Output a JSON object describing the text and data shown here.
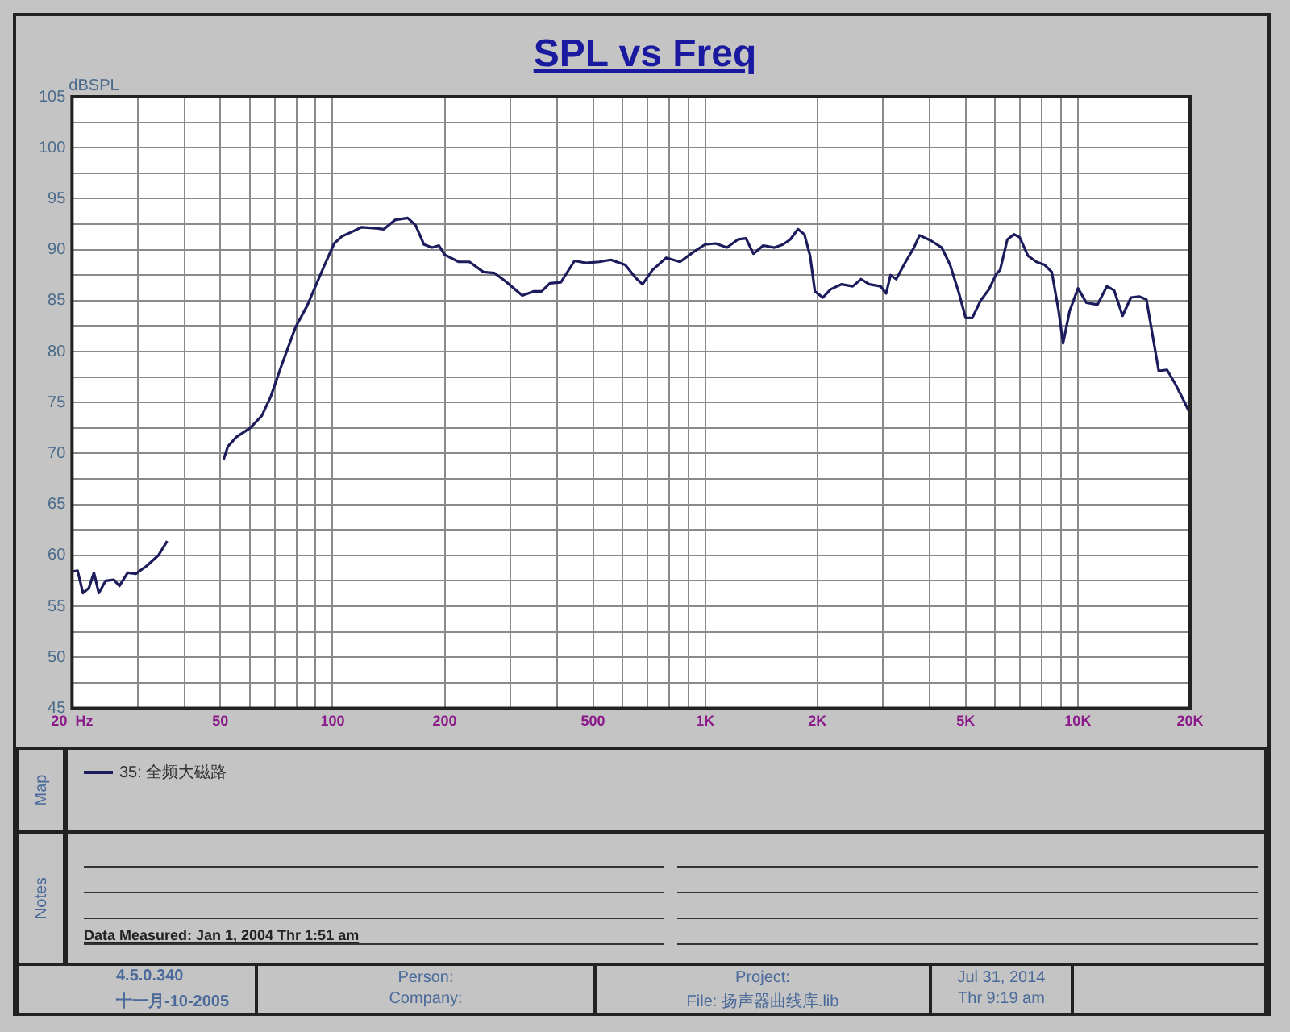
{
  "chart_data": {
    "type": "line",
    "title": "SPL vs Freq",
    "ylabel": "dBSPL",
    "x": [
      20,
      20.7,
      21.4,
      22.2,
      22.9,
      23.6,
      24.6,
      25.9,
      26.8,
      28.2,
      29.7,
      31.8,
      34.1,
      36,
      43,
      51,
      52.4,
      55.2,
      60.1,
      64.6,
      68.3,
      72.9,
      79.6,
      85.5,
      89.5,
      94.7,
      101,
      106,
      113.6,
      119.7,
      130.8,
      137.3,
      147,
      159,
      167,
      176,
      185,
      193,
      200,
      218,
      233,
      254,
      272,
      291,
      323,
      346,
      364,
      383,
      410,
      446,
      478,
      520,
      558,
      610,
      652,
      679,
      722,
      786,
      856,
      933,
      999,
      1067,
      1144,
      1225,
      1287,
      1347,
      1432,
      1535,
      1617,
      1692,
      1774,
      1846,
      1912,
      1970,
      2070,
      2170,
      2324,
      2489,
      2620,
      2758,
      2955,
      3059,
      3144,
      3255,
      3450,
      3632,
      3759,
      4027,
      4314,
      4542,
      4782,
      5000,
      5210,
      5486,
      5775,
      6040,
      6186,
      6470,
      6744,
      6980,
      7348,
      7737,
      8146,
      8514,
      8878,
      9125,
      9510,
      10010,
      10540,
      11290,
      11970,
      12516,
      13180,
      13880,
      14610,
      15275,
      16480,
      17350,
      18270,
      19230,
      20000
    ],
    "series": [
      {
        "name": "35: 全频大磁路",
        "color": "#1c1c5c",
        "values": [
          58.4,
          58.5,
          56.3,
          56.8,
          58.3,
          56.3,
          57.5,
          57.6,
          57,
          58.3,
          58.2,
          59,
          60,
          61.4,
          null,
          69.4,
          70.7,
          71.6,
          72.5,
          73.7,
          75.6,
          78.6,
          82.4,
          84.5,
          86.2,
          88.3,
          90.6,
          91.3,
          91.8,
          92.2,
          92.1,
          92,
          92.9,
          93.1,
          92.4,
          90.5,
          90.2,
          90.4,
          89.5,
          88.8,
          88.8,
          87.8,
          87.7,
          86.9,
          85.5,
          85.9,
          85.9,
          86.7,
          86.8,
          88.9,
          88.7,
          88.8,
          89,
          88.5,
          87.2,
          86.6,
          88,
          89.2,
          88.8,
          89.8,
          90.5,
          90.6,
          90.2,
          91,
          91.1,
          89.6,
          90.4,
          90.2,
          90.5,
          91,
          92,
          91.5,
          89.4,
          85.9,
          85.3,
          86.1,
          86.6,
          86.4,
          87.1,
          86.6,
          86.4,
          85.7,
          87.5,
          87.1,
          88.8,
          90.2,
          91.4,
          90.9,
          90.2,
          88.5,
          85.9,
          83.3,
          83.3,
          85,
          86.1,
          87.6,
          88,
          91,
          91.5,
          91.2,
          89.4,
          88.8,
          88.5,
          87.8,
          84,
          80.8,
          84,
          86.2,
          84.8,
          84.6,
          86.4,
          86,
          83.5,
          85.3,
          85.4,
          85.1,
          78.1,
          78.2,
          76.8,
          75.2,
          73.9
        ]
      }
    ],
    "xlim": [
      20,
      20000
    ],
    "ylim": [
      45,
      105
    ],
    "xticks": [
      {
        "value": 20,
        "label": "20  Hz"
      },
      {
        "value": 30,
        "label": null
      },
      {
        "value": 40,
        "label": null
      },
      50,
      {
        "value": 60,
        "label": null
      },
      {
        "value": 70,
        "label": null
      },
      {
        "value": 80,
        "label": null
      },
      {
        "value": 90,
        "label": null
      },
      100,
      200,
      {
        "value": 300,
        "label": null
      },
      {
        "value": 400,
        "label": null
      },
      500,
      {
        "value": 600,
        "label": null
      },
      {
        "value": 700,
        "label": null
      },
      {
        "value": 800,
        "label": null
      },
      {
        "value": 900,
        "label": null
      },
      {
        "value": 1000,
        "label": "1K"
      },
      {
        "value": 2000,
        "label": "2K"
      },
      {
        "value": 3000,
        "label": null
      },
      {
        "value": 4000,
        "label": null
      },
      {
        "value": 5000,
        "label": "5K"
      },
      {
        "value": 6000,
        "label": null
      },
      {
        "value": 7000,
        "label": null
      },
      {
        "value": 8000,
        "label": null
      },
      {
        "value": 9000,
        "label": null
      },
      {
        "value": 10000,
        "label": "10K"
      },
      {
        "value": 20000,
        "label": "20K"
      }
    ],
    "yticks": [
      45,
      {
        "value": 47.5,
        "label": null
      },
      50,
      {
        "value": 52.5,
        "label": null
      },
      55,
      {
        "value": 57.5,
        "label": null
      },
      60,
      {
        "value": 62.5,
        "label": null
      },
      65,
      {
        "value": 67.5,
        "label": null
      },
      70,
      {
        "value": 72.5,
        "label": null
      },
      75,
      {
        "value": 77.5,
        "label": null
      },
      80,
      {
        "value": 82.5,
        "label": null
      },
      85,
      {
        "value": 87.5,
        "label": null
      },
      90,
      {
        "value": 92.5,
        "label": null
      },
      95,
      {
        "value": 97.5,
        "label": null
      },
      100,
      {
        "value": 102.5,
        "label": null
      },
      105
    ],
    "log": "x",
    "grid": true,
    "legend": "bottom",
    "marker": "none",
    "annotations": [
      "Map",
      "Notes",
      "Data Measured: Jan 1, 2004  Thr  1:51 am",
      "4.5.0.340",
      "十一月-10-2005",
      "Person:",
      "Company:",
      "Project:",
      "File: 扬声器曲线库.lib",
      "Jul 31, 2014",
      "Thr  9:19 am"
    ]
  }
}
